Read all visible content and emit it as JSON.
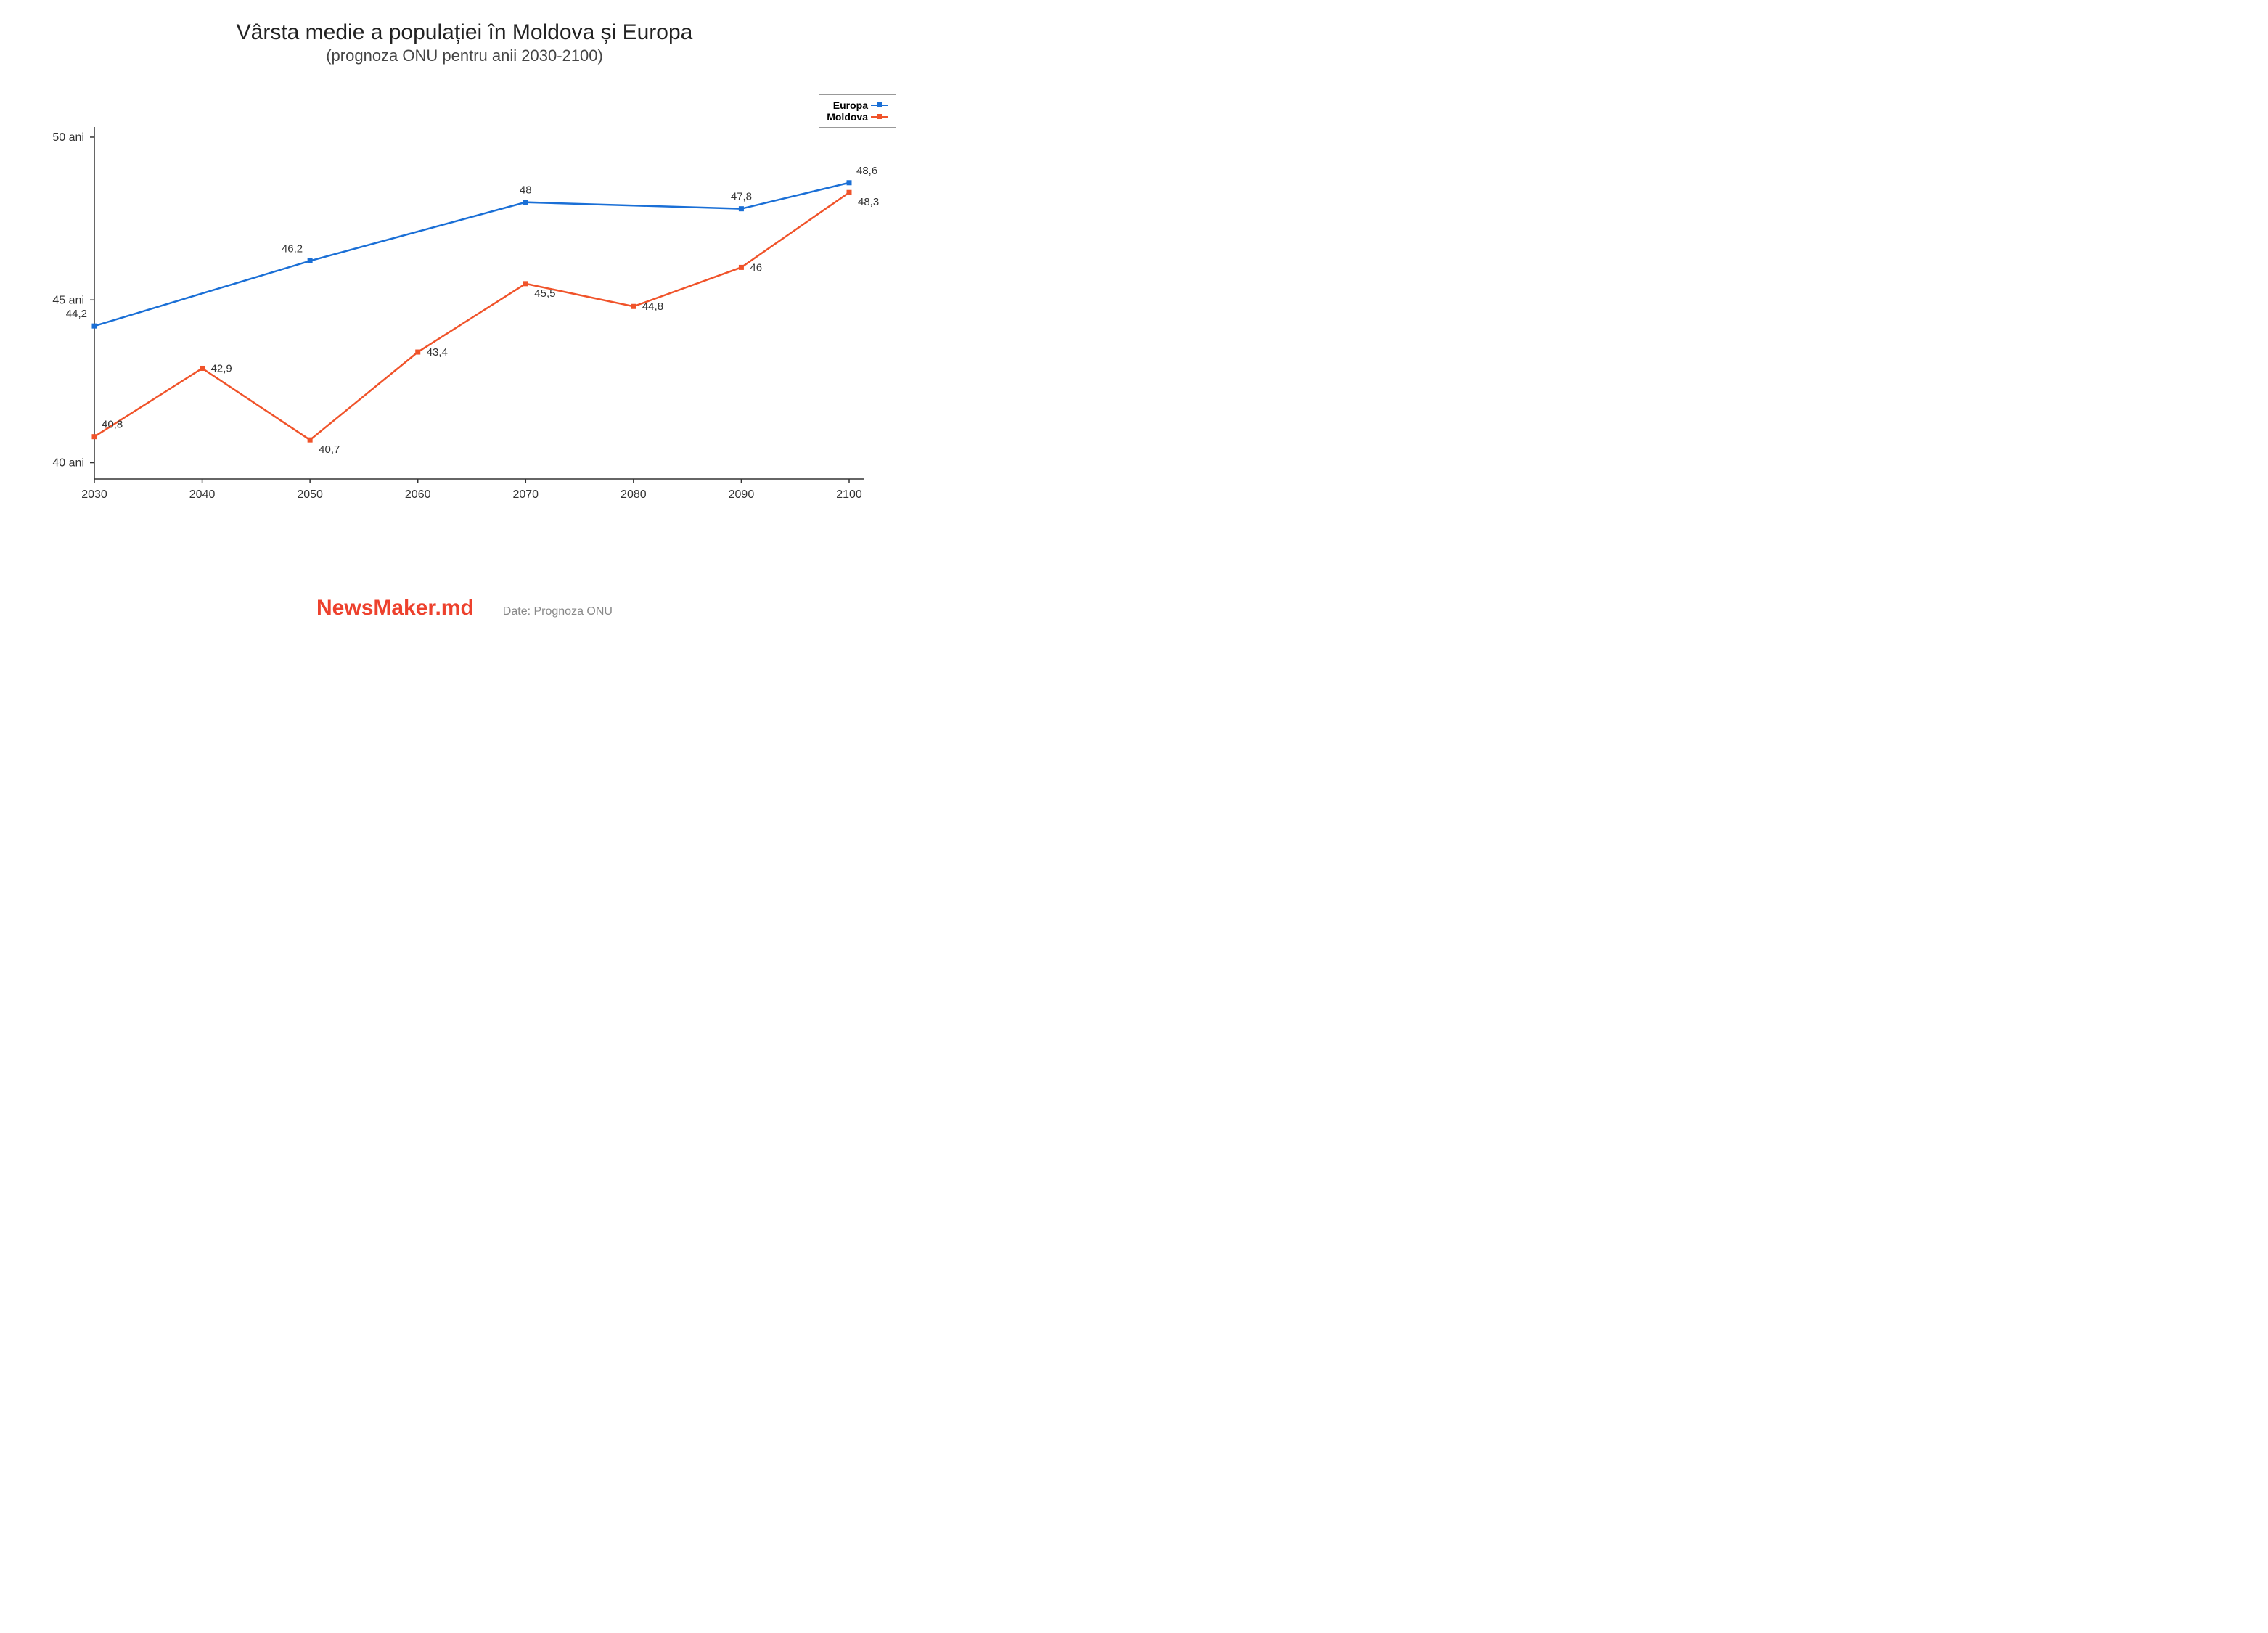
{
  "title": "Vârsta medie a populației în Moldova și Europa",
  "subtitle": "(prognoza ONU pentru anii 2030-2100)",
  "brand": "NewsMaker.md",
  "source": "Date: Prognoza ONU",
  "chart": {
    "type": "line",
    "x_categories": [
      "2030",
      "2040",
      "2050",
      "2060",
      "2070",
      "2080",
      "2090",
      "2100"
    ],
    "y_ticks": [
      40,
      45,
      50
    ],
    "y_tick_labels": [
      "40 ani",
      "45 ani",
      "50 ani"
    ],
    "ylim_min": 39.5,
    "ylim_max": 50.2,
    "axis_color": "#333333",
    "background_color": "#ffffff",
    "marker_size": 7,
    "line_width": 2.5,
    "series": [
      {
        "name": "Europa",
        "color": "#1a6fd6",
        "values": [
          44.2,
          null,
          46.2,
          null,
          48,
          null,
          47.8,
          48.6
        ],
        "labels": [
          "44,2",
          "",
          "46,2",
          "",
          "48",
          "",
          "47,8",
          "48,6"
        ],
        "label_pos": [
          "top-left",
          "",
          "top-left",
          "",
          "top",
          "",
          "top",
          "top-right"
        ]
      },
      {
        "name": "Moldova",
        "color": "#f0532a",
        "values": [
          40.8,
          42.9,
          40.7,
          43.4,
          45.5,
          44.8,
          46,
          48.3
        ],
        "labels": [
          "40,8",
          "42,9",
          "40,7",
          "43,4",
          "45,5",
          "44,8",
          "46",
          "48,3"
        ],
        "label_pos": [
          "top-right",
          "right",
          "bottom-right",
          "right",
          "bottom-right",
          "right",
          "right",
          "bottom-right"
        ]
      }
    ],
    "legend": {
      "position": "top-right",
      "border_color": "#999999",
      "items": [
        {
          "label": "Europa",
          "color": "#1a6fd6"
        },
        {
          "label": "Moldova",
          "color": "#f0532a"
        }
      ]
    },
    "fonts": {
      "title_size": 30,
      "subtitle_size": 22,
      "axis_label_size": 16,
      "data_label_size": 15,
      "legend_size": 14
    }
  }
}
